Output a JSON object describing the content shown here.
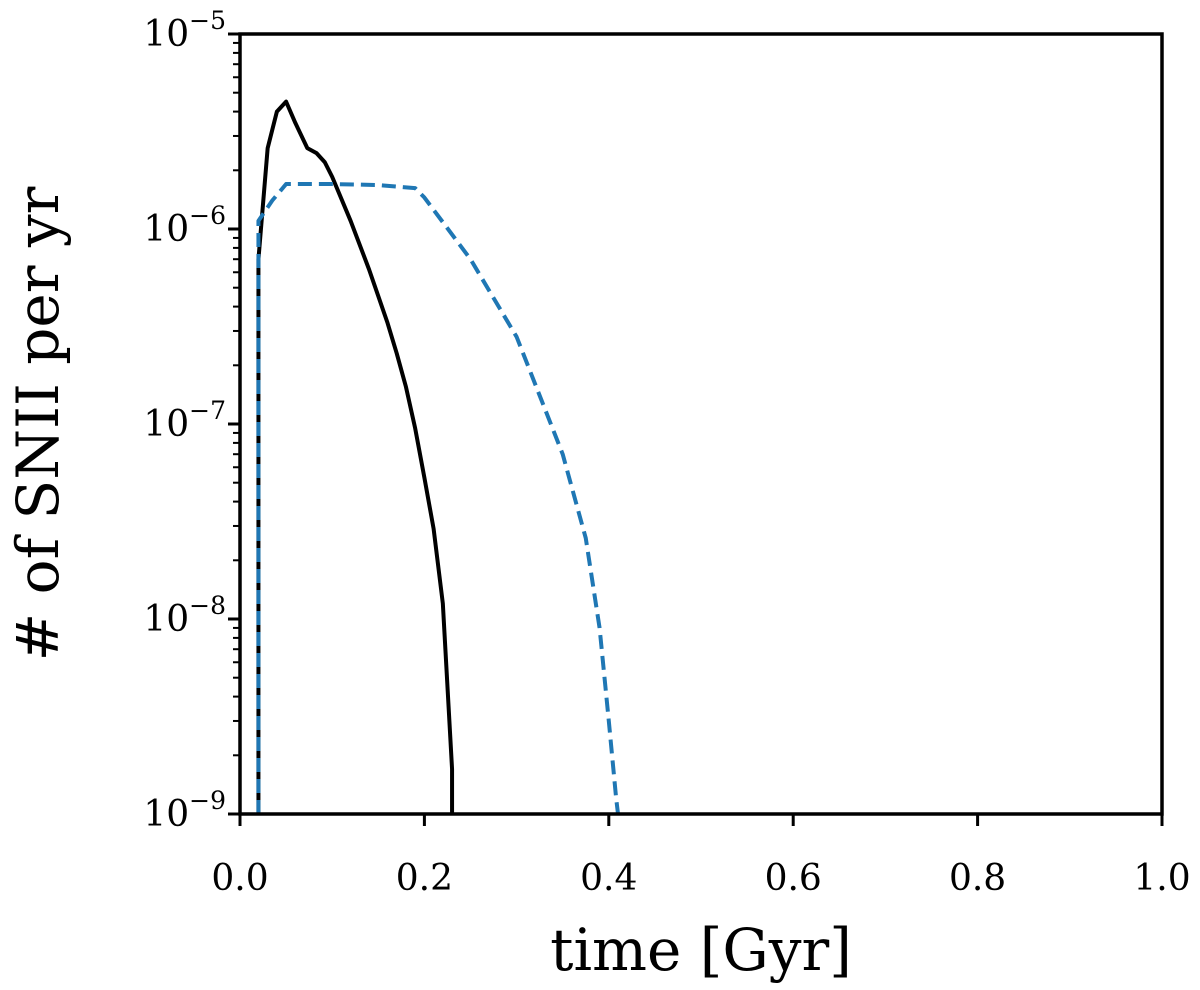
{
  "chart_data": {
    "type": "line",
    "xlabel": "time [Gyr]",
    "ylabel": "# of SNII per yr",
    "xlim": [
      0.0,
      1.0
    ],
    "ylim": [
      1e-09,
      1e-05
    ],
    "yscale": "log",
    "grid": false,
    "x_ticks": [
      "0.0",
      "0.2",
      "0.4",
      "0.6",
      "0.8",
      "1.0"
    ],
    "y_ticks": [
      {
        "base": "10",
        "exp": "−9"
      },
      {
        "base": "10",
        "exp": "−8"
      },
      {
        "base": "10",
        "exp": "−7"
      },
      {
        "base": "10",
        "exp": "−6"
      },
      {
        "base": "10",
        "exp": "−5"
      }
    ],
    "series": [
      {
        "style": "solid",
        "color": "#000000",
        "points": [
          [
            0.02,
            1e-09
          ],
          [
            0.02,
            7e-07
          ],
          [
            0.03,
            2.6e-06
          ],
          [
            0.04,
            4e-06
          ],
          [
            0.05,
            4.5e-06
          ],
          [
            0.06,
            3.5e-06
          ],
          [
            0.073,
            2.6e-06
          ],
          [
            0.083,
            2.45e-06
          ],
          [
            0.092,
            2.2e-06
          ],
          [
            0.1,
            1.85e-06
          ],
          [
            0.12,
            1.1e-06
          ],
          [
            0.14,
            6.2e-07
          ],
          [
            0.16,
            3.3e-07
          ],
          [
            0.17,
            2.3e-07
          ],
          [
            0.18,
            1.55e-07
          ],
          [
            0.19,
            9.5e-08
          ],
          [
            0.2,
            5.3e-08
          ],
          [
            0.21,
            2.9e-08
          ],
          [
            0.22,
            1.2e-08
          ],
          [
            0.23,
            1.7e-09
          ],
          [
            0.23,
            1e-09
          ]
        ]
      },
      {
        "style": "dashed",
        "color": "#1f77b4",
        "points": [
          [
            0.02,
            1e-09
          ],
          [
            0.02,
            1.1e-06
          ],
          [
            0.035,
            1.4e-06
          ],
          [
            0.05,
            1.7e-06
          ],
          [
            0.1,
            1.7e-06
          ],
          [
            0.15,
            1.68e-06
          ],
          [
            0.19,
            1.62e-06
          ],
          [
            0.2,
            1.45e-06
          ],
          [
            0.25,
            7e-07
          ],
          [
            0.3,
            2.8e-07
          ],
          [
            0.35,
            7e-08
          ],
          [
            0.375,
            2.6e-08
          ],
          [
            0.39,
            9e-09
          ],
          [
            0.4,
            3e-09
          ],
          [
            0.408,
            1.2e-09
          ],
          [
            0.41,
            1e-09
          ]
        ]
      }
    ]
  }
}
